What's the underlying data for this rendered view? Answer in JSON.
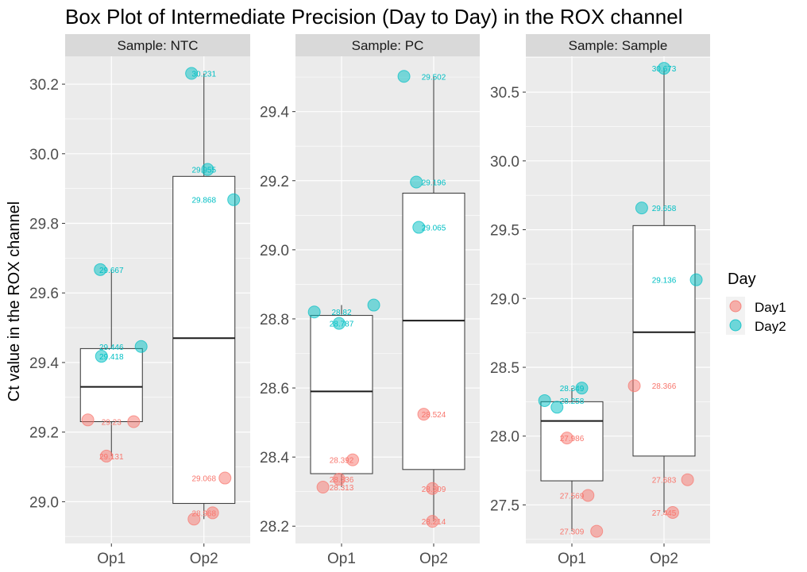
{
  "title": "Box Plot of Intermediate Precision (Day to Day) in the ROX channel",
  "ylabel": "Ct value in the ROX channel",
  "legend": {
    "title": "Day",
    "entries": [
      {
        "label": "Day1",
        "color": "#F8766D"
      },
      {
        "label": "Day2",
        "color": "#00BFC4"
      }
    ]
  },
  "colors": {
    "panel_bg": "#EBEBEB",
    "strip_bg": "#D9D9D9",
    "grid": "#FFFFFF",
    "Day1": "#F8766D",
    "Day2": "#00BFC4"
  },
  "chart_data": [
    {
      "type": "box",
      "strip": "Sample: NTC",
      "categories": [
        "Op1",
        "Op2"
      ],
      "ylim": [
        28.88,
        30.28
      ],
      "yticks": [
        29.0,
        29.2,
        29.4,
        29.6,
        29.8,
        30.0,
        30.2
      ],
      "yticklabels": [
        "29.0",
        "29.2",
        "29.4",
        "29.6",
        "29.8",
        "30.0",
        "30.2"
      ],
      "boxes": [
        {
          "category": "Op1",
          "lower": 29.131,
          "q1": 29.23,
          "median": 29.33,
          "q3": 29.44,
          "upper": 29.667
        },
        {
          "category": "Op2",
          "lower": 28.95,
          "q1": 28.995,
          "median": 29.47,
          "q3": 29.935,
          "upper": 30.231
        }
      ],
      "points": [
        {
          "category": "Op1",
          "day": "Day1",
          "y": 29.235,
          "jitter": -0.38
        },
        {
          "category": "Op1",
          "day": "Day1",
          "y": 29.23,
          "jitter": 0.36
        },
        {
          "category": "Op1",
          "day": "Day1",
          "y": 29.131,
          "jitter": -0.08
        },
        {
          "category": "Op1",
          "day": "Day2",
          "y": 29.667,
          "jitter": -0.18
        },
        {
          "category": "Op1",
          "day": "Day2",
          "y": 29.446,
          "jitter": 0.48
        },
        {
          "category": "Op1",
          "day": "Day2",
          "y": 29.418,
          "jitter": -0.16
        },
        {
          "category": "Op2",
          "day": "Day1",
          "y": 29.068,
          "jitter": 0.34
        },
        {
          "category": "Op2",
          "day": "Day1",
          "y": 28.968,
          "jitter": 0.14
        },
        {
          "category": "Op2",
          "day": "Day1",
          "y": 28.95,
          "jitter": -0.16
        },
        {
          "category": "Op2",
          "day": "Day2",
          "y": 30.231,
          "jitter": -0.2
        },
        {
          "category": "Op2",
          "day": "Day2",
          "y": 29.955,
          "jitter": 0.06
        },
        {
          "category": "Op2",
          "day": "Day2",
          "y": 29.868,
          "jitter": 0.48
        }
      ],
      "labels": [
        {
          "category": "Op1",
          "day": "Day1",
          "y": 29.23,
          "text": "29.23"
        },
        {
          "category": "Op1",
          "day": "Day1",
          "y": 29.131,
          "text": "29.131"
        },
        {
          "category": "Op1",
          "day": "Day2",
          "y": 29.667,
          "text": "29.667"
        },
        {
          "category": "Op1",
          "day": "Day2",
          "y": 29.446,
          "text": "29.446"
        },
        {
          "category": "Op1",
          "day": "Day2",
          "y": 29.418,
          "text": "29.418"
        },
        {
          "category": "Op2",
          "day": "Day1",
          "y": 29.068,
          "text": "29.068"
        },
        {
          "category": "Op2",
          "day": "Day1",
          "y": 28.968,
          "text": "28.968"
        },
        {
          "category": "Op2",
          "day": "Day2",
          "y": 30.231,
          "text": "30.231"
        },
        {
          "category": "Op2",
          "day": "Day2",
          "y": 29.955,
          "text": "29.955"
        },
        {
          "category": "Op2",
          "day": "Day2",
          "y": 29.868,
          "text": "29.868"
        }
      ]
    },
    {
      "type": "box",
      "strip": "Sample: PC",
      "categories": [
        "Op1",
        "Op2"
      ],
      "ylim": [
        28.15,
        29.56
      ],
      "yticks": [
        28.2,
        28.4,
        28.6,
        28.8,
        29.0,
        29.2,
        29.4
      ],
      "yticklabels": [
        "28.2",
        "28.4",
        "28.6",
        "28.8",
        "29.0",
        "29.2",
        "29.4"
      ],
      "boxes": [
        {
          "category": "Op1",
          "lower": 28.313,
          "q1": 28.352,
          "median": 28.59,
          "q3": 28.81,
          "upper": 28.84
        },
        {
          "category": "Op2",
          "lower": 28.214,
          "q1": 28.364,
          "median": 28.795,
          "q3": 29.164,
          "upper": 29.502
        }
      ],
      "points": [
        {
          "category": "Op1",
          "day": "Day1",
          "y": 28.392,
          "jitter": 0.18
        },
        {
          "category": "Op1",
          "day": "Day1",
          "y": 28.336,
          "jitter": -0.04
        },
        {
          "category": "Op1",
          "day": "Day1",
          "y": 28.313,
          "jitter": -0.3
        },
        {
          "category": "Op1",
          "day": "Day2",
          "y": 28.82,
          "jitter": -0.44
        },
        {
          "category": "Op1",
          "day": "Day2",
          "y": 28.787,
          "jitter": -0.04
        },
        {
          "category": "Op1",
          "day": "Day2",
          "y": 28.84,
          "jitter": 0.52
        },
        {
          "category": "Op2",
          "day": "Day1",
          "y": 28.524,
          "jitter": -0.16
        },
        {
          "category": "Op2",
          "day": "Day1",
          "y": 28.309,
          "jitter": -0.02
        },
        {
          "category": "Op2",
          "day": "Day1",
          "y": 28.214,
          "jitter": -0.02
        },
        {
          "category": "Op2",
          "day": "Day2",
          "y": 29.502,
          "jitter": -0.48
        },
        {
          "category": "Op2",
          "day": "Day2",
          "y": 29.196,
          "jitter": -0.28
        },
        {
          "category": "Op2",
          "day": "Day2",
          "y": 29.065,
          "jitter": -0.24
        }
      ],
      "labels": [
        {
          "category": "Op1",
          "day": "Day1",
          "y": 28.392,
          "text": "28.392"
        },
        {
          "category": "Op1",
          "day": "Day1",
          "y": 28.336,
          "text": "28.336"
        },
        {
          "category": "Op1",
          "day": "Day1",
          "y": 28.313,
          "text": "28.313"
        },
        {
          "category": "Op1",
          "day": "Day2",
          "y": 28.82,
          "text": "28.82"
        },
        {
          "category": "Op1",
          "day": "Day2",
          "y": 28.787,
          "text": "28.787"
        },
        {
          "category": "Op2",
          "day": "Day1",
          "y": 28.524,
          "text": "28.524"
        },
        {
          "category": "Op2",
          "day": "Day1",
          "y": 28.309,
          "text": "28.309"
        },
        {
          "category": "Op2",
          "day": "Day1",
          "y": 28.214,
          "text": "28.214"
        },
        {
          "category": "Op2",
          "day": "Day2",
          "y": 29.502,
          "text": "29.502"
        },
        {
          "category": "Op2",
          "day": "Day2",
          "y": 29.196,
          "text": "29.196"
        },
        {
          "category": "Op2",
          "day": "Day2",
          "y": 29.065,
          "text": "29.065"
        }
      ]
    },
    {
      "type": "box",
      "strip": "Sample: Sample",
      "categories": [
        "Op1",
        "Op2"
      ],
      "ylim": [
        27.22,
        30.76
      ],
      "yticks": [
        27.5,
        28.0,
        28.5,
        29.0,
        29.5,
        30.0,
        30.5
      ],
      "yticklabels": [
        "27.5",
        "28.0",
        "28.5",
        "29.0",
        "29.5",
        "30.0",
        "30.5"
      ],
      "boxes": [
        {
          "category": "Op1",
          "lower": 27.309,
          "q1": 27.675,
          "median": 28.11,
          "q3": 28.25,
          "upper": 28.349
        },
        {
          "category": "Op2",
          "lower": 27.445,
          "q1": 27.855,
          "median": 28.755,
          "q3": 29.53,
          "upper": 30.673
        }
      ],
      "points": [
        {
          "category": "Op1",
          "day": "Day1",
          "y": 27.986,
          "jitter": -0.08
        },
        {
          "category": "Op1",
          "day": "Day1",
          "y": 27.569,
          "jitter": 0.26
        },
        {
          "category": "Op1",
          "day": "Day1",
          "y": 27.309,
          "jitter": 0.4
        },
        {
          "category": "Op2",
          "day": "Day1",
          "y": 28.366,
          "jitter": -0.48
        },
        {
          "category": "Op2",
          "day": "Day1",
          "y": 27.683,
          "jitter": 0.38
        },
        {
          "category": "Op2",
          "day": "Day1",
          "y": 27.445,
          "jitter": 0.14
        },
        {
          "category": "Op1",
          "day": "Day2",
          "y": 28.349,
          "jitter": 0.16
        },
        {
          "category": "Op1",
          "day": "Day2",
          "y": 28.258,
          "jitter": -0.44
        },
        {
          "category": "Op1",
          "day": "Day2",
          "y": 28.21,
          "jitter": -0.24
        },
        {
          "category": "Op2",
          "day": "Day2",
          "y": 30.673,
          "jitter": 0.0
        },
        {
          "category": "Op2",
          "day": "Day2",
          "y": 29.658,
          "jitter": -0.36
        },
        {
          "category": "Op2",
          "day": "Day2",
          "y": 29.136,
          "jitter": 0.52
        }
      ],
      "labels": [
        {
          "category": "Op1",
          "day": "Day1",
          "y": 27.986,
          "text": "27.986"
        },
        {
          "category": "Op1",
          "day": "Day1",
          "y": 27.569,
          "text": "27.569"
        },
        {
          "category": "Op1",
          "day": "Day1",
          "y": 27.309,
          "text": "27.309"
        },
        {
          "category": "Op2",
          "day": "Day1",
          "y": 28.366,
          "text": "28.366"
        },
        {
          "category": "Op2",
          "day": "Day1",
          "y": 27.683,
          "text": "27.683"
        },
        {
          "category": "Op2",
          "day": "Day1",
          "y": 27.445,
          "text": "27.445"
        },
        {
          "category": "Op1",
          "day": "Day2",
          "y": 28.349,
          "text": "28.349"
        },
        {
          "category": "Op1",
          "day": "Day2",
          "y": 28.258,
          "text": "28.258"
        },
        {
          "category": "Op2",
          "day": "Day2",
          "y": 30.673,
          "text": "30.673"
        },
        {
          "category": "Op2",
          "day": "Day2",
          "y": 29.658,
          "text": "29.658"
        },
        {
          "category": "Op2",
          "day": "Day2",
          "y": 29.136,
          "text": "29.136"
        }
      ]
    }
  ]
}
